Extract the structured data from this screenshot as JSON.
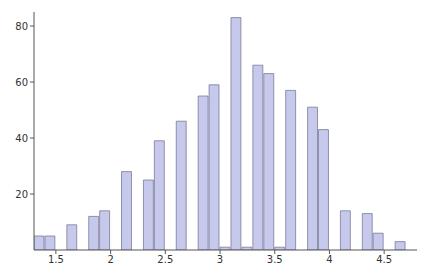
{
  "chart_data": {
    "type": "histogram",
    "bins": [
      1.3,
      1.4,
      1.5,
      1.6,
      1.7,
      1.8,
      1.9,
      2.0,
      2.1,
      2.2,
      2.3,
      2.4,
      2.5,
      2.6,
      2.7,
      2.8,
      2.9,
      3.0,
      3.1,
      3.2,
      3.3,
      3.4,
      3.5,
      3.6,
      3.7,
      3.8,
      3.9,
      4.0,
      4.1,
      4.2,
      4.3,
      4.4,
      4.5,
      4.6,
      4.7,
      4.8
    ],
    "values": [
      5,
      5,
      0,
      9,
      0,
      12,
      14,
      0,
      28,
      0,
      25,
      39,
      0,
      46,
      0,
      55,
      59,
      1,
      83,
      1,
      66,
      63,
      1,
      57,
      0,
      51,
      43,
      0,
      14,
      0,
      13,
      6,
      0,
      3,
      0
    ],
    "color": "#c7c9ec",
    "xlim": [
      1.3,
      4.8
    ],
    "xticks": [
      1.5,
      2,
      2.5,
      3,
      3.5,
      4,
      4.5
    ],
    "ylim": [
      0,
      85
    ],
    "yticks": [
      20,
      40,
      60,
      80
    ],
    "grid": false
  }
}
